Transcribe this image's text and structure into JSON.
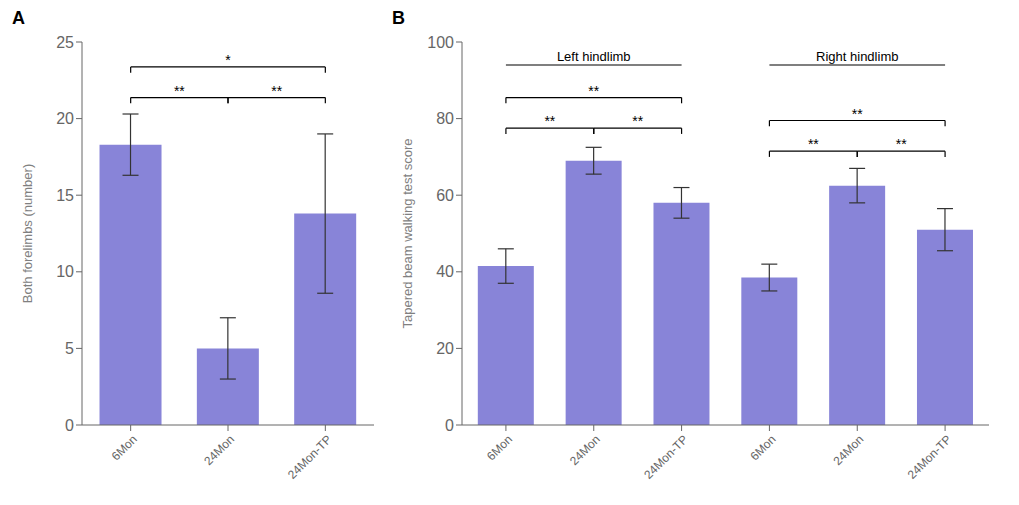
{
  "chart_data": [
    {
      "type": "bar",
      "categories": [
        "6Mon",
        "24Mon",
        "24Mon-TP"
      ],
      "values": [
        18.3,
        5.0,
        13.8
      ],
      "errors": [
        2.0,
        2.0,
        5.2
      ],
      "ylabel": "Both forelimbs (number)",
      "ylim": [
        0,
        25
      ],
      "yticks": [
        0,
        5,
        10,
        15,
        20,
        25
      ],
      "grid": false,
      "annotations": [
        {
          "kind": "panel_label",
          "text": "A"
        },
        {
          "kind": "bracket",
          "x1": 0,
          "x2": 1,
          "y": 21.0,
          "text": "**"
        },
        {
          "kind": "bracket",
          "x1": 1,
          "x2": 2,
          "y": 21.0,
          "text": "**"
        },
        {
          "kind": "bracket",
          "x1": 0,
          "x2": 2,
          "y": 23.0,
          "text": "*"
        }
      ]
    },
    {
      "type": "bar",
      "categories": [
        "6Mon",
        "24Mon",
        "24Mon-TP",
        "6Mon",
        "24Mon",
        "24Mon-TP"
      ],
      "values": [
        41.5,
        69.0,
        58.0,
        38.5,
        62.5,
        51.0
      ],
      "errors": [
        4.5,
        3.5,
        4.0,
        3.5,
        4.5,
        5.5
      ],
      "ylabel": "Tapered beam walking test score",
      "ylim": [
        0,
        100
      ],
      "yticks": [
        0,
        20,
        40,
        60,
        80,
        100
      ],
      "grid": false,
      "annotations": [
        {
          "kind": "panel_label",
          "text": "B"
        },
        {
          "kind": "group_label",
          "x1": 0,
          "x2": 2,
          "text": "Left hindlimb"
        },
        {
          "kind": "group_label",
          "x1": 3,
          "x2": 5,
          "text": "Right hindlimb"
        },
        {
          "kind": "bracket",
          "x1": 0,
          "x2": 1,
          "y": 76,
          "text": "**"
        },
        {
          "kind": "bracket",
          "x1": 1,
          "x2": 2,
          "y": 76,
          "text": "**"
        },
        {
          "kind": "bracket",
          "x1": 0,
          "x2": 2,
          "y": 84,
          "text": "**"
        },
        {
          "kind": "bracket",
          "x1": 3,
          "x2": 4,
          "y": 70,
          "text": "**"
        },
        {
          "kind": "bracket",
          "x1": 4,
          "x2": 5,
          "y": 70,
          "text": "**"
        },
        {
          "kind": "bracket",
          "x1": 3,
          "x2": 5,
          "y": 78,
          "text": "**"
        }
      ]
    }
  ]
}
